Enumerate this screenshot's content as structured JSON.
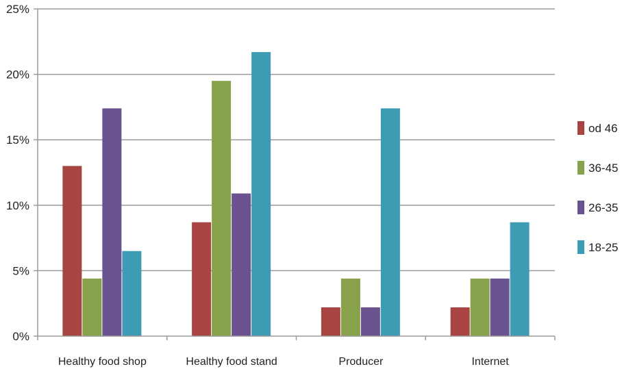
{
  "chart_data": {
    "type": "bar",
    "categories": [
      "Healthy food shop",
      "Healthy food stand",
      "Producer",
      "Internet"
    ],
    "series": [
      {
        "name": "od 46",
        "color": "#a84442",
        "values": [
          13.0,
          8.7,
          2.2,
          2.2
        ]
      },
      {
        "name": "36-45",
        "color": "#87a24a",
        "values": [
          4.4,
          19.5,
          4.4,
          4.4
        ]
      },
      {
        "name": "26-35",
        "color": "#6b5390",
        "values": [
          17.4,
          10.9,
          2.2,
          4.4
        ]
      },
      {
        "name": "18-25",
        "color": "#3e9bb4",
        "values": [
          6.5,
          21.7,
          17.4,
          8.7
        ]
      }
    ],
    "ylim": [
      0,
      25
    ],
    "yticks": [
      0,
      5,
      10,
      15,
      20,
      25
    ],
    "ytick_labels": [
      "0%",
      "5%",
      "10%",
      "15%",
      "20%",
      "25%"
    ],
    "grid": true,
    "legend_position": "right",
    "legend_order": [
      "od 46",
      "36-45",
      "26-35",
      "18-25"
    ]
  }
}
